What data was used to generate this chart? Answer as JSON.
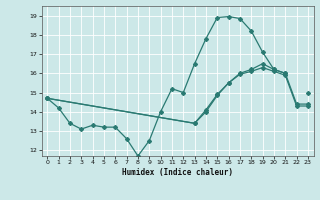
{
  "xlabel": "Humidex (Indice chaleur)",
  "bg_color": "#cce8e8",
  "grid_color": "#ffffff",
  "line_color": "#2a7a72",
  "xlim": [
    -0.5,
    23.5
  ],
  "ylim": [
    11.7,
    19.5
  ],
  "xticks": [
    0,
    1,
    2,
    3,
    4,
    5,
    6,
    7,
    8,
    9,
    10,
    11,
    12,
    13,
    14,
    15,
    16,
    17,
    18,
    19,
    20,
    21,
    22,
    23
  ],
  "yticks": [
    12,
    13,
    14,
    15,
    16,
    17,
    18,
    19
  ],
  "line1_x": [
    0,
    1,
    2,
    3,
    4,
    5,
    6,
    7,
    8,
    9,
    10,
    11,
    12,
    13,
    14,
    15,
    16,
    17,
    18,
    19,
    20,
    21,
    22,
    23
  ],
  "line1_y": [
    14.7,
    14.2,
    13.4,
    13.1,
    13.3,
    13.2,
    13.2,
    12.6,
    11.7,
    12.5,
    14.0,
    15.2,
    15.0,
    16.5,
    17.8,
    18.9,
    18.95,
    18.85,
    18.2,
    17.1,
    16.2,
    16.0,
    null,
    15.0
  ],
  "line2_x": [
    0,
    13,
    14,
    15,
    16,
    17,
    18,
    19,
    20,
    21,
    22,
    23
  ],
  "line2_y": [
    14.7,
    13.4,
    14.1,
    14.9,
    15.5,
    16.0,
    16.2,
    16.5,
    16.2,
    16.0,
    14.4,
    14.4
  ],
  "line3_x": [
    0,
    13,
    14,
    15,
    16,
    17,
    18,
    19,
    20,
    21,
    22,
    23
  ],
  "line3_y": [
    14.7,
    13.4,
    14.0,
    14.85,
    15.5,
    15.95,
    16.1,
    16.3,
    16.1,
    15.9,
    14.3,
    14.3
  ]
}
